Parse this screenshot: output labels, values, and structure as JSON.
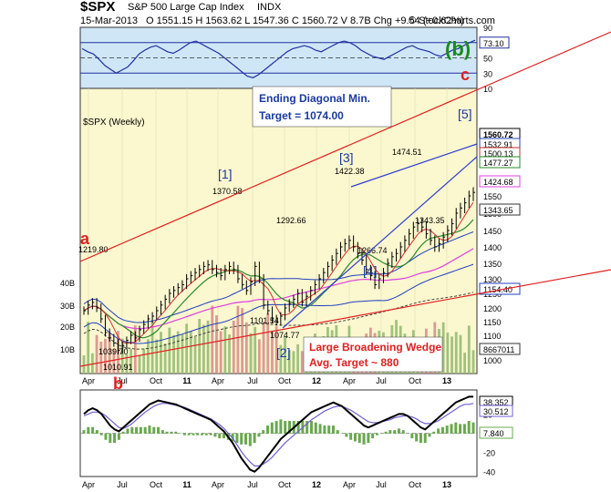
{
  "header": {
    "symbol": "$SPX",
    "name": "S&P 500 Large Cap Index",
    "exchange": "INDX",
    "date": "15-Mar-2013",
    "ohlc": "O 1551.15   H 1563.62   L 1547.36   C 1560.72   V 8.7B   Chg +9.54 (+0.62%)",
    "copyright": "© StockCharts.com"
  },
  "annotations": {
    "diag_title": "Ending Diagonal Min.",
    "diag_target": "Target = 1074.00",
    "wedge_title": "Large Broadening Wedge",
    "wedge_target": "Avg. Target ~ 880",
    "b_paren": "(b)",
    "c_letter": "c",
    "a_letter": "a",
    "b_letter": "b",
    "w1": "[1]",
    "w2": "[2]",
    "w3": "[3]",
    "w4": "[4]",
    "w5": "[5]",
    "price_chart_label": "$SPX (Weekly)"
  },
  "colors": {
    "panel_bg": "#fbf7cf",
    "top_bg": "#cfe6f7",
    "red_line": "#e02020",
    "blue_line": "#3040d0",
    "green_wave": "#1a8a1a",
    "sma_green": "#2a8a2a",
    "sma_blue": "#2040c0",
    "sma_magenta": "#e040e0"
  },
  "chart_data": [
    {
      "type": "line",
      "name": "RSI",
      "ylim": [
        10,
        90
      ],
      "yticks": [
        10,
        30,
        50,
        70,
        90
      ],
      "current_label": "73.10",
      "values": [
        62,
        58,
        55,
        48,
        40,
        35,
        30,
        34,
        38,
        46,
        55,
        60,
        64,
        66,
        62,
        58,
        56,
        60,
        65,
        70,
        72,
        68,
        64,
        60,
        56,
        50,
        44,
        38,
        32,
        26,
        24,
        28,
        34,
        40,
        46,
        52,
        58,
        62,
        64,
        66,
        64,
        60,
        58,
        62,
        66,
        70,
        72,
        70,
        66,
        60,
        56,
        52,
        50,
        48,
        52,
        56,
        60,
        64,
        66,
        62,
        60,
        58,
        54,
        52,
        56,
        60,
        62,
        66,
        70,
        73
      ]
    },
    {
      "type": "line",
      "name": "$SPX (Weekly)",
      "xlabels": [
        "Apr",
        "Jul",
        "Oct",
        "11",
        "Apr",
        "Jul",
        "Oct",
        "12",
        "Apr",
        "Jul",
        "Oct",
        "13"
      ],
      "ylim": [
        1000,
        1600
      ],
      "yticks": [
        1000,
        1050,
        1100,
        1150,
        1200,
        1250,
        1300,
        1350,
        1400,
        1450,
        1500,
        1550,
        1600
      ],
      "price_labels": [
        "1560.72",
        "1532.91",
        "1500.13",
        "1477.27",
        "1424.68",
        "1343.65",
        "1154.40",
        "8667011"
      ],
      "price_annotations": [
        "1219.80",
        "1370.58",
        "1422.38",
        "1474.51",
        "1292.66",
        "1266.74",
        "1343.35",
        "1101.54",
        "1074.77",
        "1039.70",
        "1010.91"
      ],
      "volume_ticks": [
        "10B",
        "20B",
        "30B",
        "40B"
      ],
      "close": [
        1190,
        1210,
        1219,
        1200,
        1160,
        1110,
        1090,
        1070,
        1040,
        1060,
        1080,
        1100,
        1090,
        1120,
        1140,
        1160,
        1170,
        1190,
        1210,
        1230,
        1250,
        1260,
        1270,
        1280,
        1300,
        1310,
        1320,
        1330,
        1340,
        1345,
        1330,
        1320,
        1310,
        1330,
        1340,
        1330,
        1300,
        1280,
        1260,
        1290,
        1340,
        1300,
        1210,
        1190,
        1160,
        1150,
        1170,
        1200,
        1215,
        1230,
        1250,
        1220,
        1240,
        1260,
        1280,
        1300,
        1320,
        1340,
        1360,
        1380,
        1400,
        1410,
        1420,
        1400,
        1380,
        1360,
        1330,
        1310,
        1280,
        1300,
        1320,
        1350,
        1370,
        1380,
        1400,
        1420,
        1440,
        1460,
        1470,
        1460,
        1440,
        1420,
        1400,
        1410,
        1430,
        1450,
        1470,
        1500,
        1515,
        1530,
        1550,
        1560
      ]
    },
    {
      "type": "line",
      "name": "MACD",
      "ylim": [
        -40,
        40
      ],
      "yticks": [
        -40,
        -20,
        0,
        20
      ],
      "labels": [
        "38.352",
        "30.512",
        "7.840"
      ],
      "macd": [
        20,
        24,
        26,
        24,
        20,
        14,
        8,
        4,
        2,
        6,
        10,
        14,
        18,
        22,
        26,
        30,
        32,
        34,
        33,
        32,
        31,
        30,
        28,
        26,
        24,
        22,
        20,
        18,
        16,
        14,
        10,
        6,
        2,
        -4,
        -10,
        -18,
        -26,
        -32,
        -38,
        -40,
        -36,
        -30,
        -24,
        -18,
        -12,
        -6,
        -2,
        2,
        6,
        10,
        14,
        18,
        22,
        24,
        26,
        28,
        30,
        32,
        30,
        28,
        24,
        20,
        16,
        12,
        8,
        6,
        8,
        10,
        12,
        14,
        16,
        18,
        20,
        20,
        18,
        14,
        10,
        6,
        4,
        8,
        12,
        16,
        20,
        24,
        28,
        32,
        34,
        36,
        38,
        38
      ],
      "signal": [
        18,
        20,
        22,
        22,
        21,
        18,
        14,
        10,
        6,
        5,
        7,
        10,
        14,
        18,
        22,
        25,
        28,
        30,
        31,
        31,
        30,
        29,
        28,
        27,
        25,
        23,
        21,
        19,
        17,
        15,
        12,
        9,
        5,
        0,
        -5,
        -12,
        -19,
        -25,
        -30,
        -34,
        -34,
        -32,
        -29,
        -25,
        -20,
        -15,
        -10,
        -6,
        -2,
        2,
        6,
        10,
        14,
        17,
        20,
        23,
        25,
        27,
        28,
        28,
        26,
        24,
        21,
        18,
        15,
        12,
        11,
        11,
        12,
        13,
        14,
        16,
        17,
        18,
        18,
        17,
        15,
        12,
        10,
        10,
        11,
        13,
        16,
        19,
        22,
        25,
        28,
        30,
        30,
        31
      ]
    }
  ]
}
